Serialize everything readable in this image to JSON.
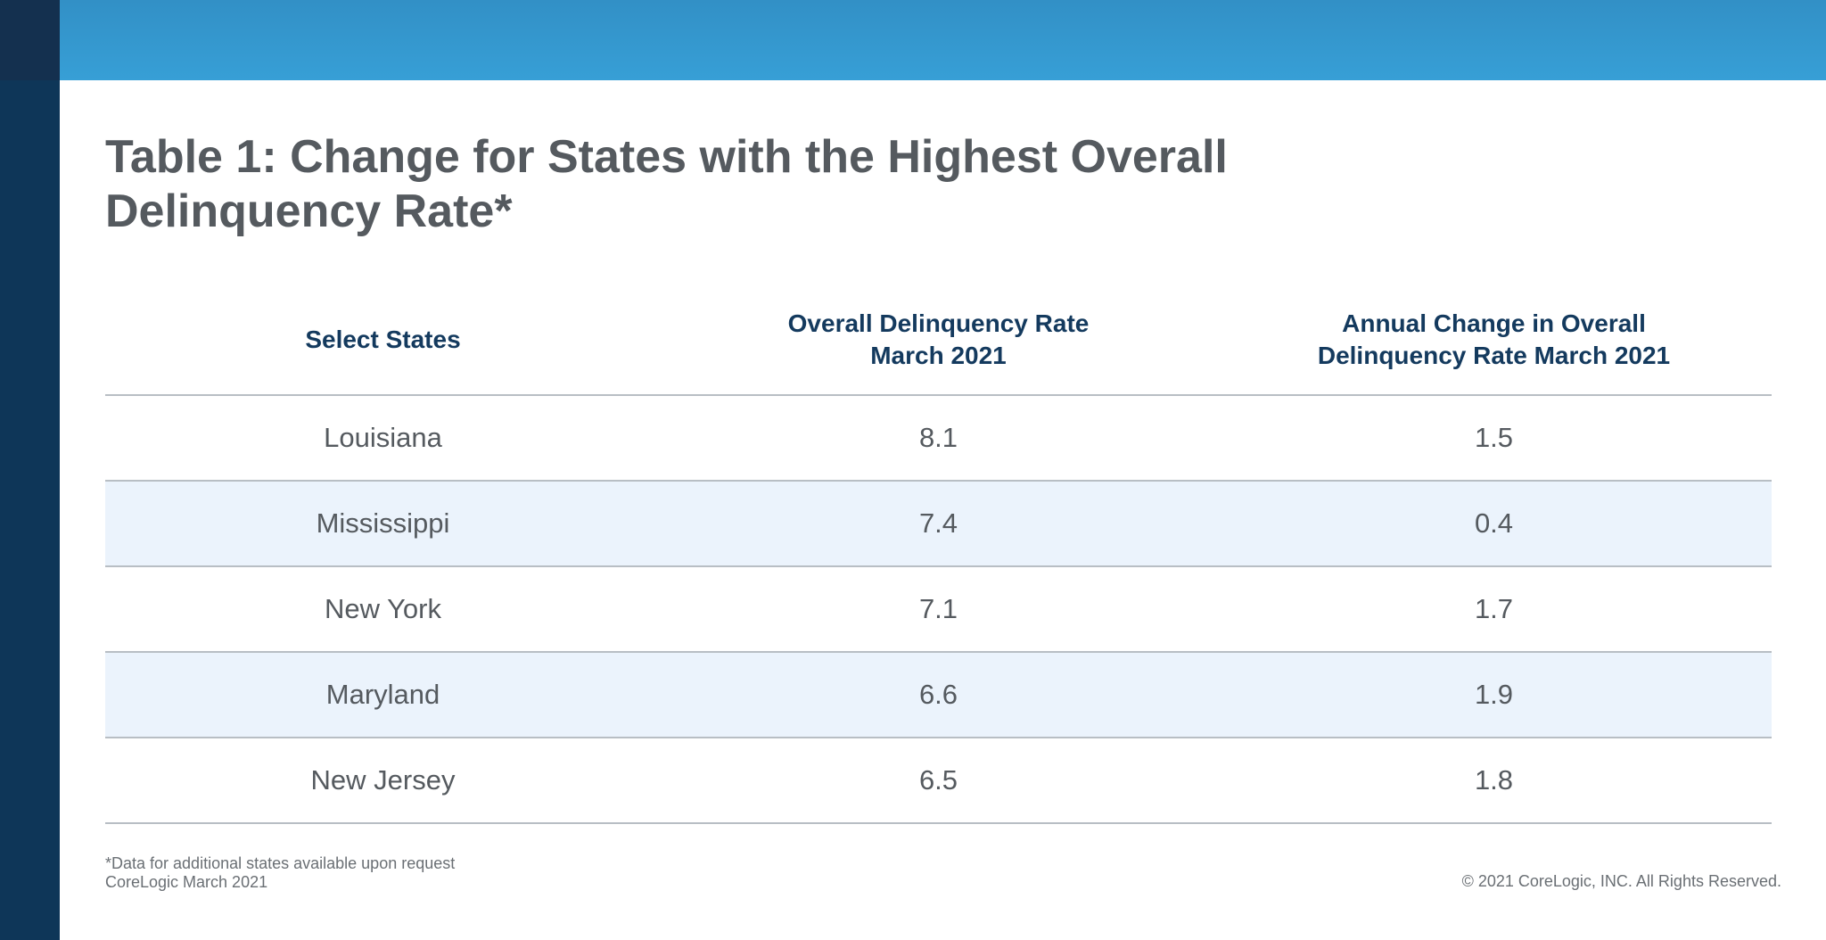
{
  "chart_data": {
    "type": "table",
    "title": "Table 1: Change for States with the Highest Overall Delinquency Rate*",
    "columns": [
      "Select States",
      "Overall Delinquency Rate\nMarch 2021",
      "Annual Change in Overall\nDelinquency Rate March 2021"
    ],
    "rows": [
      {
        "state": "Louisiana",
        "rate": "8.1",
        "change": "1.5"
      },
      {
        "state": "Mississippi",
        "rate": "7.4",
        "change": "0.4"
      },
      {
        "state": "New York",
        "rate": "7.1",
        "change": "1.7"
      },
      {
        "state": "Maryland",
        "rate": "6.6",
        "change": "1.9"
      },
      {
        "state": "New Jersey",
        "rate": "6.5",
        "change": "1.8"
      }
    ],
    "footnote_lines": [
      "*Data for additional states available upon request",
      "CoreLogic March 2021"
    ],
    "copyright": "© 2021 CoreLogic, INC. All Rights Reserved."
  },
  "colors": {
    "top_bar": "#379fd6",
    "left_bar": "#0e3658",
    "header_text": "#143a5e",
    "alt_row": "#ebf3fc"
  }
}
